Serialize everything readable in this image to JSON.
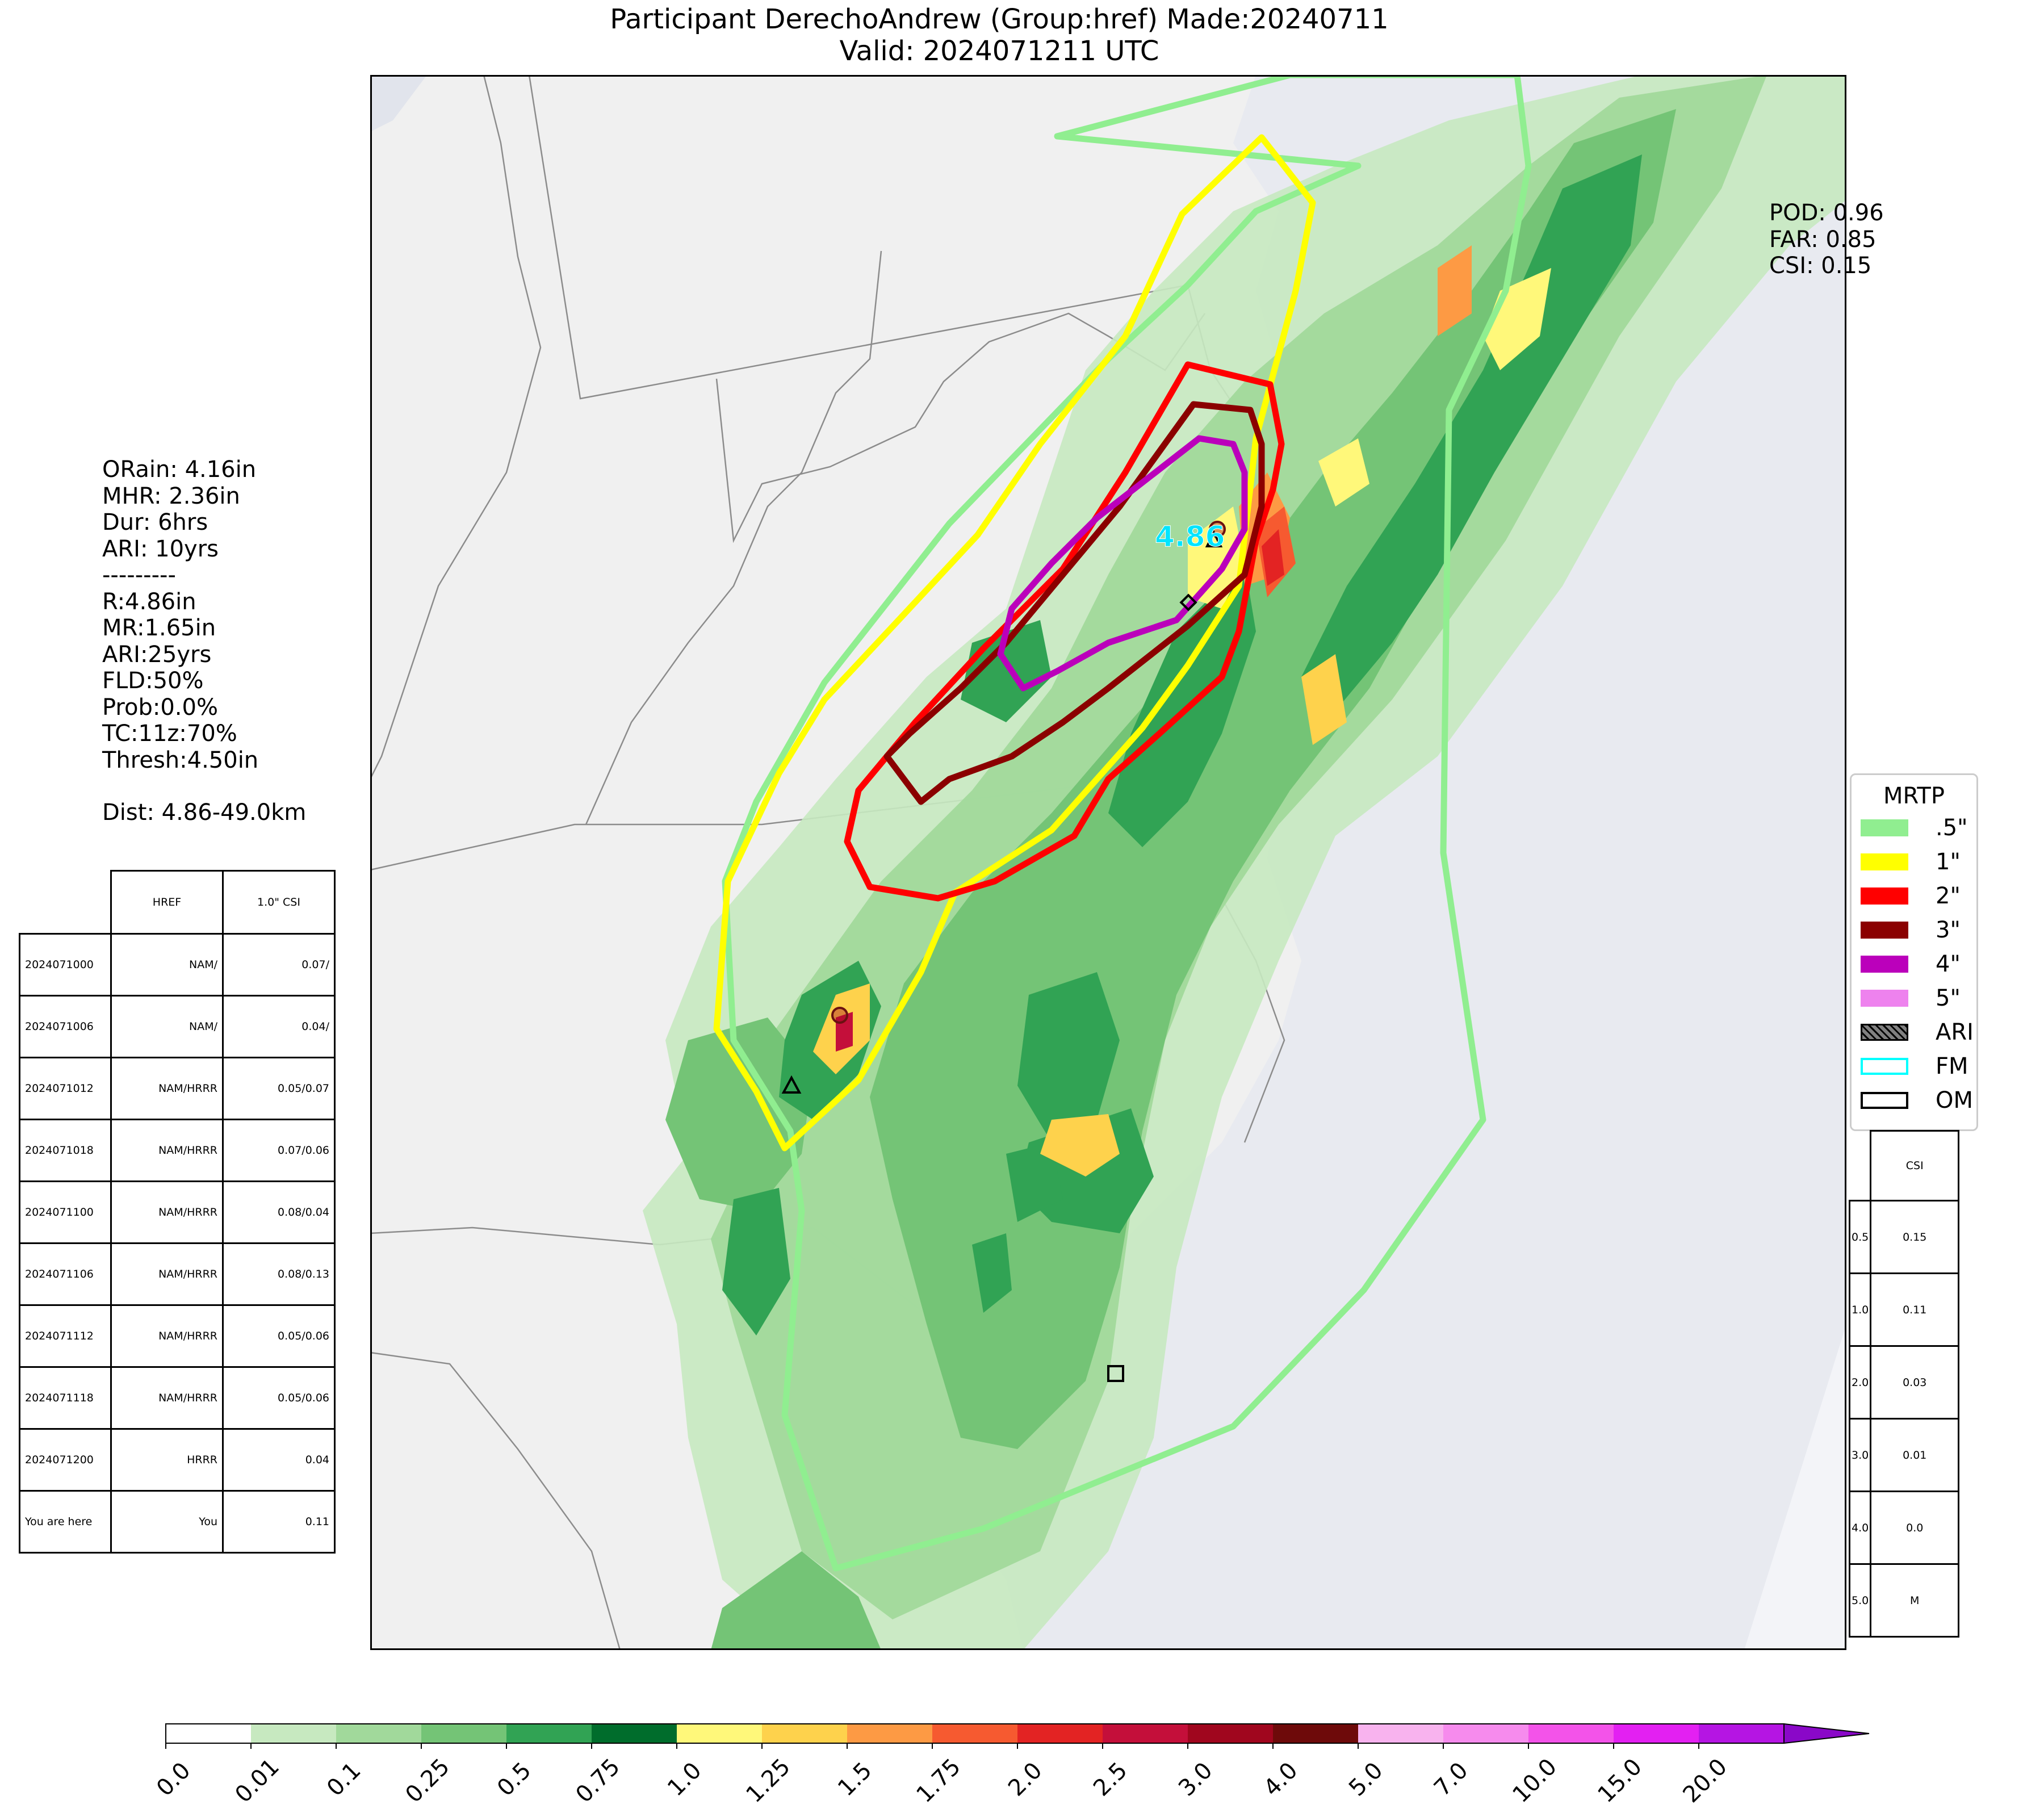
{
  "title": {
    "line1": "Participant DerechoAndrew (Group:href) Made:20240711",
    "line2": "Valid: 2024071211 UTC"
  },
  "left_stats": {
    "orain": "ORain: 4.16in",
    "mhr": "MHR: 2.36in",
    "dur": "Dur: 6hrs",
    "ari": "ARI: 10yrs",
    "sep": "---------",
    "r": "R:4.86in",
    "mr": "MR:1.65in",
    "ari2": "ARI:25yrs",
    "fld": "FLD:50%",
    "prob": "Prob:0.0%",
    "tc": "TC:11z:70%",
    "thresh": "Thresh:4.50in",
    "dist": "Dist: 4.86-49.0km"
  },
  "scores": {
    "pod": "POD: 0.96",
    "far": "FAR: 0.85",
    "csi": "CSI: 0.15"
  },
  "map": {
    "max_label": "4.86",
    "colors": {
      "land": "#f0f0f0",
      "water": "#e8eaf0",
      "border": "#8c8c8c",
      "contour_05": "#90ee90",
      "contour_1": "#ffff00",
      "contour_2": "#ff0000",
      "contour_3": "#8b0000",
      "contour_4": "#bb00bb",
      "fm_label": "#00e5ff"
    }
  },
  "history_table": {
    "headers": [
      "",
      "HREF",
      "1.0\" CSI"
    ],
    "rows": [
      [
        "2024071000",
        "NAM/",
        "0.07/"
      ],
      [
        "2024071006",
        "NAM/",
        "0.04/"
      ],
      [
        "2024071012",
        "NAM/HRRR",
        "0.05/0.07"
      ],
      [
        "2024071018",
        "NAM/HRRR",
        "0.07/0.06"
      ],
      [
        "2024071100",
        "NAM/HRRR",
        "0.08/0.04"
      ],
      [
        "2024071106",
        "NAM/HRRR",
        "0.08/0.13"
      ],
      [
        "2024071112",
        "NAM/HRRR",
        "0.05/0.06"
      ],
      [
        "2024071118",
        "NAM/HRRR",
        "0.05/0.06"
      ],
      [
        "2024071200",
        "HRRR",
        "0.04"
      ],
      [
        "You are here",
        "You",
        "0.11"
      ]
    ]
  },
  "csi_table": {
    "header": "CSI",
    "rows": [
      [
        "0.5",
        "0.15"
      ],
      [
        "1.0",
        "0.11"
      ],
      [
        "2.0",
        "0.03"
      ],
      [
        "3.0",
        "0.01"
      ],
      [
        "4.0",
        "0.0"
      ],
      [
        "5.0",
        "M"
      ]
    ]
  },
  "legend": {
    "title": "MRTP",
    "items": [
      {
        "label": ".5\"",
        "color": "#90ee90",
        "style": "fill"
      },
      {
        "label": "1\"",
        "color": "#ffff00",
        "style": "fill"
      },
      {
        "label": "2\"",
        "color": "#ff0000",
        "style": "fill"
      },
      {
        "label": "3\"",
        "color": "#8b0000",
        "style": "fill"
      },
      {
        "label": "4\"",
        "color": "#bb00bb",
        "style": "fill"
      },
      {
        "label": "5\"",
        "color": "#ee82ee",
        "style": "fill"
      },
      {
        "label": "ARI",
        "color": "#808080",
        "style": "hatch"
      },
      {
        "label": "FM",
        "color": "#00ffff",
        "style": "outline"
      },
      {
        "label": "OM",
        "color": "#000000",
        "style": "outline"
      }
    ]
  },
  "colorbar": {
    "ticks": [
      "0.0",
      "0.01",
      "0.1",
      "0.25",
      "0.5",
      "0.75",
      "1.0",
      "1.25",
      "1.5",
      "1.75",
      "2.0",
      "2.5",
      "3.0",
      "4.0",
      "5.0",
      "7.0",
      "10.0",
      "15.0",
      "20.0"
    ],
    "colors": [
      "#ffffff",
      "#c7e9c0",
      "#a1d99b",
      "#74c476",
      "#31a354",
      "#006d2c",
      "#fff87a",
      "#fed24c",
      "#fd9a44",
      "#f65a30",
      "#e32323",
      "#c40f3a",
      "#a0061e",
      "#6e0a0a",
      "#f8b3ee",
      "#f68bed",
      "#f353e9",
      "#e320f2",
      "#b515e3",
      "#8a08c8"
    ]
  }
}
